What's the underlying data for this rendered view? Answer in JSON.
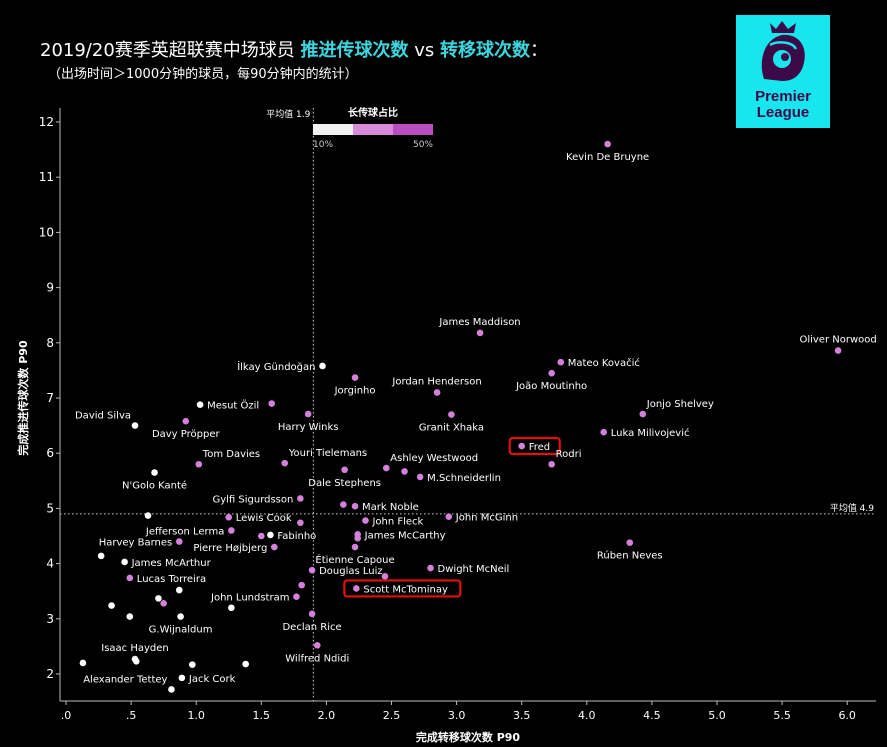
{
  "header": {
    "title_prefix": "2019/20赛季英超联赛中场球员 ",
    "title_hl1": "推进传球次数",
    "title_vs": " vs ",
    "title_hl2": "转移球次数",
    "title_suffix": "：",
    "subtitle": "（出场时间＞1000分钟的球员，每90分钟内的统计）"
  },
  "logo": {
    "line1": "Premier",
    "line2": "League",
    "icon": "premier-league-lion-icon",
    "bg_color": "#18e6ef"
  },
  "colors": {
    "purple": "#d67fdc",
    "white": "#ffffff",
    "highlight_box": "#e01010",
    "accent": "#3dd6e0"
  },
  "legend": {
    "title": "长传球占比",
    "min_label": "10%",
    "max_label": "50%",
    "colors": [
      "#f2f2f2",
      "#d78bd9",
      "#b84ec0"
    ]
  },
  "chart_data": {
    "type": "scatter",
    "xlabel": "完成转移球次数 P90",
    "ylabel": "完成推进传球次数 P90",
    "xlim": [
      0,
      6.2
    ],
    "ylim": [
      1.5,
      12.4
    ],
    "x_ticks": [
      0,
      0.5,
      1.0,
      1.5,
      2.0,
      2.5,
      3.0,
      3.5,
      4.0,
      4.5,
      5.0,
      5.5,
      6.0
    ],
    "x_tick_labels": [
      ".0",
      ".5",
      "1.0",
      "1.5",
      "2.0",
      "2.5",
      "3.0",
      "3.5",
      "4.0",
      "4.5",
      "5.0",
      "5.5",
      "6.0"
    ],
    "y_ticks": [
      2,
      3,
      4,
      5,
      6,
      7,
      8,
      9,
      10,
      11,
      12
    ],
    "y_tick_labels": [
      "2",
      "3",
      "4",
      "5",
      "6",
      "7",
      "8",
      "9",
      "10",
      "11",
      "12"
    ],
    "x_mean": {
      "value": 1.9,
      "label": "平均值 1.9"
    },
    "y_mean": {
      "value": 4.9,
      "label": "平均值 4.9"
    },
    "grid": false,
    "points": [
      {
        "name": "Kevin De Bruyne",
        "x": 4.16,
        "y": 11.6,
        "c": "p",
        "la": "below"
      },
      {
        "name": "Oliver Norwood",
        "x": 5.93,
        "y": 7.86,
        "c": "p",
        "la": "above"
      },
      {
        "name": "James Maddison",
        "x": 3.18,
        "y": 8.18,
        "c": "p",
        "la": "above"
      },
      {
        "name": "Mateo Kovačić",
        "x": 3.8,
        "y": 7.65,
        "c": "p",
        "la": "right"
      },
      {
        "name": "João Moutinho",
        "x": 3.73,
        "y": 7.45,
        "c": "p",
        "la": "below"
      },
      {
        "name": "Jordan Henderson",
        "x": 2.85,
        "y": 7.1,
        "c": "p",
        "la": "above"
      },
      {
        "name": "Granit Xhaka",
        "x": 2.96,
        "y": 6.7,
        "c": "p",
        "la": "below"
      },
      {
        "name": "Jonjo Shelvey",
        "x": 4.43,
        "y": 6.71,
        "c": "p",
        "la": "aboveright"
      },
      {
        "name": "Luka Milivojević",
        "x": 4.13,
        "y": 6.38,
        "c": "p",
        "la": "right"
      },
      {
        "name": "Fred",
        "x": 3.5,
        "y": 6.13,
        "c": "p",
        "la": "right",
        "box": true
      },
      {
        "name": "Rodri",
        "x": 3.73,
        "y": 5.8,
        "c": "p",
        "la": "aboveright"
      },
      {
        "name": "Jorginho",
        "x": 2.22,
        "y": 7.37,
        "c": "p",
        "la": "below"
      },
      {
        "name": "İlkay Gündoğan",
        "x": 1.97,
        "y": 7.58,
        "c": "w",
        "la": "left"
      },
      {
        "name": "Mesut Özil",
        "x": 1.03,
        "y": 6.88,
        "c": "w",
        "la": "right"
      },
      {
        "name": "",
        "x": 1.58,
        "y": 6.9,
        "c": "p",
        "la": "none"
      },
      {
        "name": "Harry Winks",
        "x": 1.86,
        "y": 6.71,
        "c": "p",
        "la": "below"
      },
      {
        "name": "David Silva",
        "x": 0.53,
        "y": 6.5,
        "c": "w",
        "la": "aboveleft"
      },
      {
        "name": "Davy Pröpper",
        "x": 0.92,
        "y": 6.58,
        "c": "p",
        "la": "below"
      },
      {
        "name": "Tom Davies",
        "x": 1.02,
        "y": 5.8,
        "c": "p",
        "la": "aboveright"
      },
      {
        "name": "Youri Tielemans",
        "x": 1.68,
        "y": 5.82,
        "c": "p",
        "la": "aboveright"
      },
      {
        "name": "Ashley Westwood",
        "x": 2.46,
        "y": 5.73,
        "c": "p",
        "la": "aboveright"
      },
      {
        "name": "Dale Stephens",
        "x": 2.14,
        "y": 5.7,
        "c": "p",
        "la": "below"
      },
      {
        "name": "",
        "x": 2.6,
        "y": 5.67,
        "c": "p",
        "la": "none"
      },
      {
        "name": "M.Schneiderlin",
        "x": 2.72,
        "y": 5.57,
        "c": "p",
        "la": "right"
      },
      {
        "name": "N'Golo Kanté",
        "x": 0.68,
        "y": 5.65,
        "c": "w",
        "la": "below"
      },
      {
        "name": "Gylfi Sigurdsson",
        "x": 1.8,
        "y": 5.18,
        "c": "p",
        "la": "left"
      },
      {
        "name": "",
        "x": 2.13,
        "y": 5.07,
        "c": "p",
        "la": "none"
      },
      {
        "name": "Mark Noble",
        "x": 2.22,
        "y": 5.04,
        "c": "p",
        "la": "right"
      },
      {
        "name": "John McGinn",
        "x": 2.94,
        "y": 4.85,
        "c": "p",
        "la": "right"
      },
      {
        "name": "Lewis Cook",
        "x": 1.25,
        "y": 4.84,
        "c": "p",
        "la": "right"
      },
      {
        "name": "",
        "x": 0.63,
        "y": 4.87,
        "c": "w",
        "la": "none"
      },
      {
        "name": "John Fleck",
        "x": 2.3,
        "y": 4.78,
        "c": "p",
        "la": "right"
      },
      {
        "name": "",
        "x": 1.8,
        "y": 4.74,
        "c": "p",
        "la": "none"
      },
      {
        "name": "Jefferson Lerma",
        "x": 1.27,
        "y": 4.6,
        "c": "p",
        "la": "left"
      },
      {
        "name": "Fabinho",
        "x": 1.57,
        "y": 4.52,
        "c": "w",
        "la": "right"
      },
      {
        "name": "",
        "x": 1.5,
        "y": 4.5,
        "c": "p",
        "la": "none"
      },
      {
        "name": "James McCarthy",
        "x": 2.24,
        "y": 4.53,
        "c": "p",
        "la": "right"
      },
      {
        "name": "",
        "x": 2.24,
        "y": 4.46,
        "c": "p",
        "la": "none"
      },
      {
        "name": "Pierre Højbjerg",
        "x": 1.6,
        "y": 4.3,
        "c": "p",
        "la": "left"
      },
      {
        "name": "Étienne Capoue",
        "x": 2.22,
        "y": 4.3,
        "c": "p",
        "la": "below"
      },
      {
        "name": "Harvey Barnes",
        "x": 0.87,
        "y": 4.4,
        "c": "p",
        "la": "left"
      },
      {
        "name": "Rúben Neves",
        "x": 4.33,
        "y": 4.38,
        "c": "p",
        "la": "below"
      },
      {
        "name": "",
        "x": 0.27,
        "y": 4.14,
        "c": "w",
        "la": "none"
      },
      {
        "name": "James McArthur",
        "x": 0.45,
        "y": 4.03,
        "c": "w",
        "la": "right"
      },
      {
        "name": "Dwight McNeil",
        "x": 2.8,
        "y": 3.92,
        "c": "p",
        "la": "right"
      },
      {
        "name": "Douglas Luiz",
        "x": 1.89,
        "y": 3.88,
        "c": "p",
        "la": "right"
      },
      {
        "name": "",
        "x": 2.45,
        "y": 3.77,
        "c": "p",
        "la": "none"
      },
      {
        "name": "Lucas Torreira",
        "x": 0.49,
        "y": 3.74,
        "c": "p",
        "la": "right"
      },
      {
        "name": "Scott McTominay",
        "x": 2.23,
        "y": 3.55,
        "c": "p",
        "la": "right",
        "box": true
      },
      {
        "name": "",
        "x": 1.81,
        "y": 3.61,
        "c": "p",
        "la": "none"
      },
      {
        "name": "",
        "x": 0.87,
        "y": 3.52,
        "c": "w",
        "la": "none"
      },
      {
        "name": "John Lundstram",
        "x": 1.77,
        "y": 3.4,
        "c": "p",
        "la": "left"
      },
      {
        "name": "",
        "x": 0.71,
        "y": 3.37,
        "c": "w",
        "la": "none"
      },
      {
        "name": "",
        "x": 0.75,
        "y": 3.28,
        "c": "p",
        "la": "none"
      },
      {
        "name": "",
        "x": 0.35,
        "y": 3.24,
        "c": "w",
        "la": "none"
      },
      {
        "name": "",
        "x": 1.27,
        "y": 3.2,
        "c": "w",
        "la": "none"
      },
      {
        "name": "Declan Rice",
        "x": 1.89,
        "y": 3.09,
        "c": "p",
        "la": "below"
      },
      {
        "name": "",
        "x": 0.49,
        "y": 3.04,
        "c": "w",
        "la": "none"
      },
      {
        "name": "G.Wijnaldum",
        "x": 0.88,
        "y": 3.04,
        "c": "w",
        "la": "below"
      },
      {
        "name": "Wilfred Ndidi",
        "x": 1.93,
        "y": 2.52,
        "c": "p",
        "la": "below"
      },
      {
        "name": "Isaac Hayden",
        "x": 0.53,
        "y": 2.27,
        "c": "w",
        "la": "above"
      },
      {
        "name": "",
        "x": 0.54,
        "y": 2.23,
        "c": "w",
        "la": "none"
      },
      {
        "name": "",
        "x": 0.13,
        "y": 2.2,
        "c": "w",
        "la": "none"
      },
      {
        "name": "",
        "x": 0.97,
        "y": 2.17,
        "c": "w",
        "la": "none"
      },
      {
        "name": "",
        "x": 1.38,
        "y": 2.18,
        "c": "w",
        "la": "none"
      },
      {
        "name": "Jack Cork",
        "x": 0.89,
        "y": 1.93,
        "c": "w",
        "la": "right"
      },
      {
        "name": "Alexander Tettey",
        "x": 0.81,
        "y": 1.72,
        "c": "w",
        "la": "aboveleft"
      }
    ]
  }
}
